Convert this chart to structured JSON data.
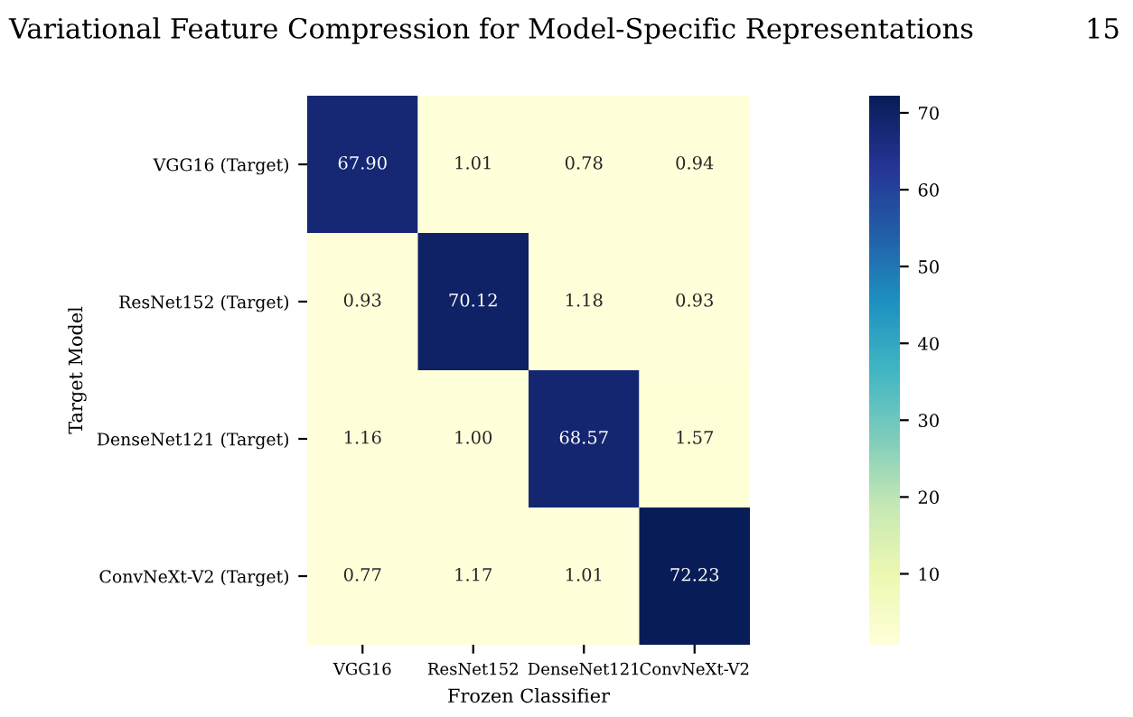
{
  "chart_data": {
    "type": "heatmap",
    "title": "Variational Feature Compression for Model-Specific Representations",
    "annotations": [
      "15"
    ],
    "xlabel": "Frozen Classifier",
    "ylabel": "Target Model",
    "categories": [
      "VGG16",
      "ResNet152",
      "DenseNet121",
      "ConvNeXt-V2"
    ],
    "y_categories": [
      "VGG16 (Target)",
      "ResNet152 (Target)",
      "DenseNet121 (Target)",
      "ConvNeXt-V2 (Target)"
    ],
    "cells": [
      [
        67.9,
        1.01,
        0.78,
        0.94
      ],
      [
        0.93,
        70.12,
        1.18,
        0.93
      ],
      [
        1.16,
        1.0,
        68.57,
        1.57
      ],
      [
        0.77,
        1.17,
        1.01,
        72.23
      ]
    ],
    "cell_labels": [
      [
        "67.90",
        "1.01",
        "0.78",
        "0.94"
      ],
      [
        "0.93",
        "70.12",
        "1.18",
        "0.93"
      ],
      [
        "1.16",
        "1.00",
        "68.57",
        "1.57"
      ],
      [
        "0.77",
        "1.17",
        "1.01",
        "72.23"
      ]
    ],
    "clim": [
      0.77,
      72.23
    ],
    "cticks": [
      10,
      20,
      30,
      40,
      50,
      60,
      70
    ]
  }
}
